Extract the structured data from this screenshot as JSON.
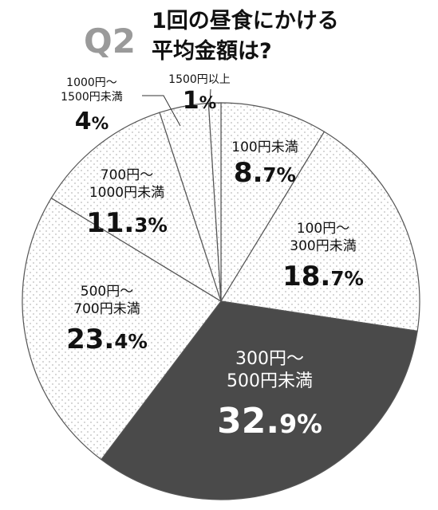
{
  "header": {
    "badge": "Q2",
    "title_line1": "1回の昼食にかける",
    "title_line2": "平均金額は?"
  },
  "chart_data": {
    "type": "pie",
    "title": "1回の昼食にかける平均金額は?",
    "unit": "%",
    "start_angle_deg": 0,
    "direction": "clockwise",
    "slices": [
      {
        "label_lines": [
          "100円未満"
        ],
        "label": "100円未満",
        "value": 8.7,
        "value_text": [
          "8.",
          "7",
          "%"
        ],
        "fill": "dots"
      },
      {
        "label_lines": [
          "100円〜",
          "300円未満"
        ],
        "label": "100円〜300円未満",
        "value": 18.7,
        "value_text": [
          "18.",
          "7",
          "%"
        ],
        "fill": "dots"
      },
      {
        "label_lines": [
          "300円〜",
          "500円未満"
        ],
        "label": "300円〜500円未満",
        "value": 32.9,
        "value_text": [
          "32.",
          "9",
          "%"
        ],
        "fill": "dark"
      },
      {
        "label_lines": [
          "500円〜",
          "700円未満"
        ],
        "label": "500円〜700円未満",
        "value": 23.4,
        "value_text": [
          "23.",
          "4",
          "%"
        ],
        "fill": "dots"
      },
      {
        "label_lines": [
          "700円〜",
          "1000円未満"
        ],
        "label": "700円〜1000円未満",
        "value": 11.3,
        "value_text": [
          "11.",
          "3",
          "%"
        ],
        "fill": "dots"
      },
      {
        "label_lines": [
          "1000円〜",
          "1500円未満"
        ],
        "label": "1000円〜1500円未満",
        "value": 4,
        "value_text": [
          "4",
          "",
          "%"
        ],
        "fill": "dots"
      },
      {
        "label_lines": [
          "1500円以上"
        ],
        "label": "1500円以上",
        "value": 1,
        "value_text": [
          "1",
          "",
          "%"
        ],
        "fill": "dots"
      }
    ],
    "colors": {
      "dots": "#bbbbbb",
      "dark": "#4a4a4a",
      "background": "#ffffff",
      "edge": "#555555"
    }
  }
}
